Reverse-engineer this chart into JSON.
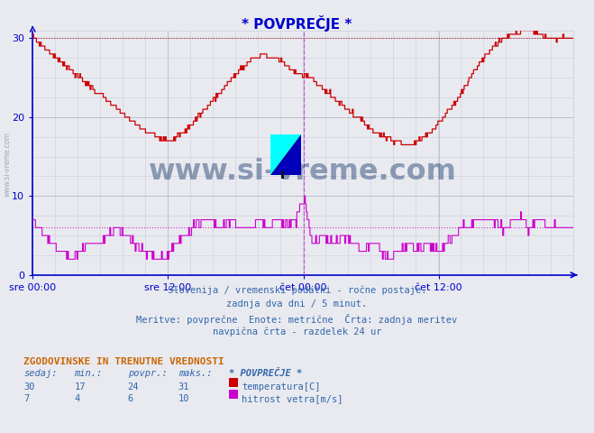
{
  "title": "* POVPREČJE *",
  "bg_color": "#e8eaf0",
  "plot_bg_color": "#e8eaf0",
  "xlim": [
    0,
    575
  ],
  "ylim": [
    0,
    31
  ],
  "yticks": [
    0,
    10,
    20,
    30
  ],
  "xtick_labels": [
    "sre 00:00",
    "sre 12:00",
    "čet 00:00",
    "čet 12:00"
  ],
  "xtick_positions": [
    0,
    144,
    288,
    432
  ],
  "temp_color": "#cc0000",
  "wind_color": "#cc00cc",
  "temp_avg": 30,
  "wind_avg": 6,
  "vline_pos": 288,
  "vline_color": "#cc44cc",
  "grid_color": "#ccccdd",
  "grid_major_color": "#bbbbcc",
  "axis_color": "#0000cc",
  "info_color": "#3366aa",
  "legend_title_color": "#cc6600",
  "legend_val_color": "#3366aa",
  "text_lines": [
    "Slovenija / vremenski podatki - ročne postaje.",
    "zadnja dva dni / 5 minut.",
    "Meritve: povprečne  Enote: metrične  Črta: zadnja meritev",
    "navpična črta - razdelek 24 ur"
  ],
  "legend_title": "ZGODOVINSKE IN TRENUTNE VREDNOSTI",
  "col_headers": [
    "sedaj:",
    "min.:",
    "povpr.:",
    "maks.:",
    "* POVPREČJE *"
  ],
  "row1_vals": [
    "30",
    "17",
    "24",
    "31"
  ],
  "row1_label": "temperatura[C]",
  "row1_color": "#cc0000",
  "row2_vals": [
    "7",
    "4",
    "6",
    "10"
  ],
  "row2_label": "hitrost vetra[m/s]",
  "row2_color": "#cc00cc",
  "watermark": "www.si-vreme.com",
  "watermark_color": "#1a3a6a",
  "side_text": "www.si-vreme.com",
  "side_text_color": "#8899aa"
}
